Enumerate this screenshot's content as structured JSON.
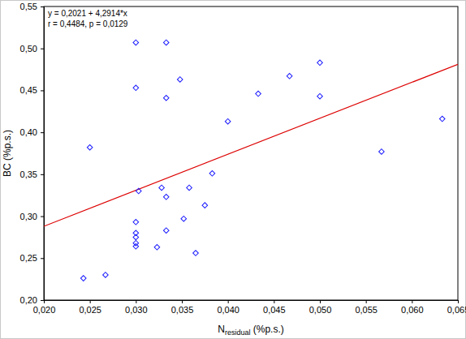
{
  "chart_data": {
    "type": "scatter",
    "x_label": {
      "text": "N",
      "subscript": "residual",
      "suffix": " (%p.s.)"
    },
    "y_label": "BC (%p.s.)",
    "annotations": [
      "y = 0,2021 + 4,2914*x",
      "r = 0,4484, p = 0,0129"
    ],
    "xlim": [
      0.02,
      0.065
    ],
    "ylim": [
      0.2,
      0.55
    ],
    "xticks": [
      {
        "value": 0.02,
        "label": "0,020"
      },
      {
        "value": 0.025,
        "label": "0,025"
      },
      {
        "value": 0.03,
        "label": "0,030"
      },
      {
        "value": 0.035,
        "label": "0,035"
      },
      {
        "value": 0.04,
        "label": "0,040"
      },
      {
        "value": 0.045,
        "label": "0,045"
      },
      {
        "value": 0.05,
        "label": "0,050"
      },
      {
        "value": 0.055,
        "label": "0,055"
      },
      {
        "value": 0.06,
        "label": "0,060"
      },
      {
        "value": 0.065,
        "label": "0,065"
      }
    ],
    "yticks": [
      {
        "value": 0.2,
        "label": "0,20"
      },
      {
        "value": 0.25,
        "label": "0,25"
      },
      {
        "value": 0.3,
        "label": "0,30"
      },
      {
        "value": 0.35,
        "label": "0,35"
      },
      {
        "value": 0.4,
        "label": "0,40"
      },
      {
        "value": 0.45,
        "label": "0,45"
      },
      {
        "value": 0.5,
        "label": "0,50"
      },
      {
        "value": 0.55,
        "label": "0,55"
      }
    ],
    "grid": false,
    "series": [
      {
        "marker": "diamond",
        "color": "#1a1aff",
        "x": [
          0.03,
          0.0333,
          0.03,
          0.0333,
          0.0348,
          0.025,
          0.0303,
          0.0328,
          0.0333,
          0.0358,
          0.03,
          0.03,
          0.03,
          0.03,
          0.03,
          0.0323,
          0.0333,
          0.0352,
          0.0365,
          0.0375,
          0.0383,
          0.0243,
          0.0267,
          0.04,
          0.0433,
          0.0467,
          0.05,
          0.05,
          0.0567,
          0.0633
        ],
        "values": [
          0.507,
          0.507,
          0.453,
          0.441,
          0.463,
          0.382,
          0.33,
          0.334,
          0.323,
          0.334,
          0.293,
          0.28,
          0.275,
          0.268,
          0.264,
          0.263,
          0.283,
          0.297,
          0.256,
          0.313,
          0.351,
          0.226,
          0.23,
          0.413,
          0.446,
          0.467,
          0.483,
          0.443,
          0.377,
          0.416
        ]
      }
    ],
    "fit": {
      "intercept": 0.2021,
      "slope": 4.2914,
      "color": "#dd0000"
    }
  }
}
